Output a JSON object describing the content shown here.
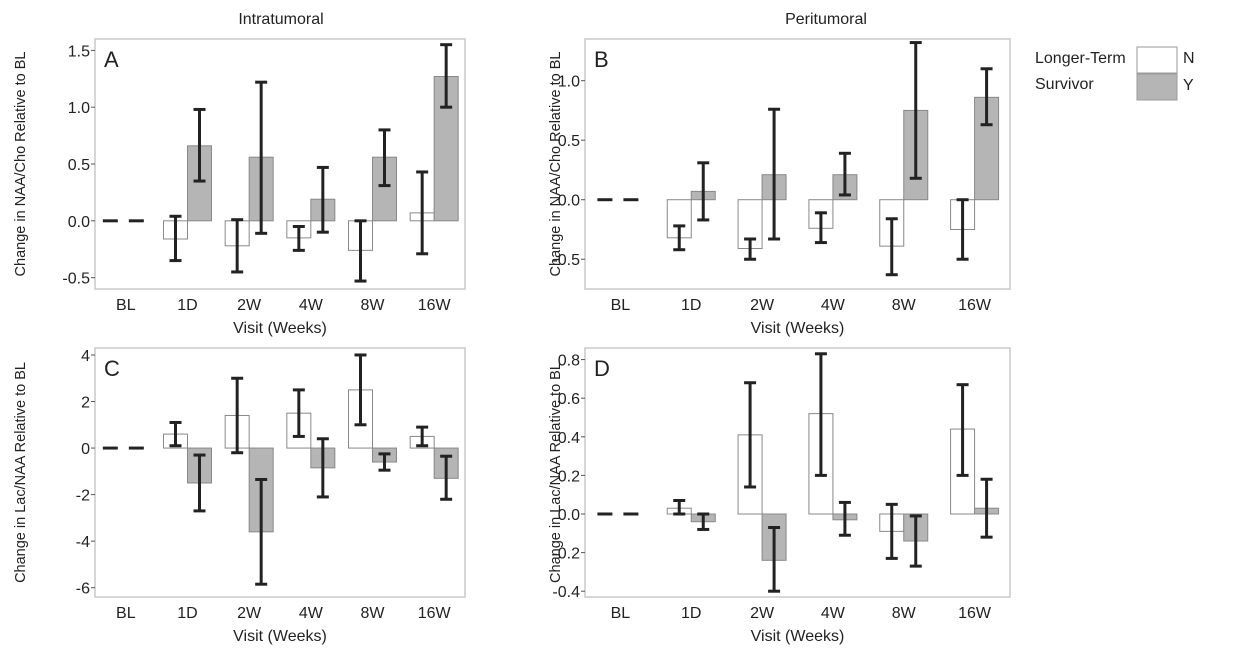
{
  "col_titles": [
    "Intratumoral",
    "Peritumoral"
  ],
  "legend": {
    "title": [
      "Longer-Term",
      "Survivor"
    ],
    "entries": [
      "N",
      "Y"
    ]
  },
  "colors": {
    "N": "#ffffff",
    "Y": "#b5b5b5",
    "frame": "#c8c8c8",
    "bar_edge": "#888888",
    "error": "#222222"
  },
  "chart_data": [
    {
      "type": "bar",
      "panel": "A",
      "categories": [
        "BL",
        "1D",
        "2W",
        "4W",
        "8W",
        "16W"
      ],
      "xlabel": "Visit (Weeks)",
      "ylabel": "Change in NAA/Cho Relative to BL",
      "ylim": [
        -0.6,
        1.6
      ],
      "yticks": [
        "1.5",
        "1.0",
        "0.5",
        "0.0",
        "-0.5"
      ],
      "series": [
        {
          "name": "N",
          "values": [
            0,
            -0.16,
            -0.22,
            -0.15,
            -0.26,
            0.07
          ],
          "err_low": [
            0,
            -0.35,
            -0.45,
            -0.26,
            -0.53,
            -0.29
          ],
          "err_high": [
            0,
            0.04,
            0.01,
            -0.05,
            0.0,
            0.43
          ]
        },
        {
          "name": "Y",
          "values": [
            0,
            0.66,
            0.56,
            0.19,
            0.56,
            1.27
          ],
          "err_low": [
            0,
            0.35,
            -0.11,
            -0.1,
            0.31,
            1.0
          ],
          "err_high": [
            0,
            0.98,
            1.22,
            0.47,
            0.8,
            1.55
          ]
        }
      ]
    },
    {
      "type": "bar",
      "panel": "B",
      "categories": [
        "BL",
        "1D",
        "2W",
        "4W",
        "8W",
        "16W"
      ],
      "xlabel": "Visit (Weeks)",
      "ylabel": "Change in NAA/Cho Relative to BL",
      "ylim": [
        -0.75,
        1.35
      ],
      "yticks": [
        "1.0",
        "0.5",
        "0.0",
        "-0.5"
      ],
      "series": [
        {
          "name": "N",
          "values": [
            0,
            -0.32,
            -0.41,
            -0.24,
            -0.39,
            -0.25
          ],
          "err_low": [
            0,
            -0.42,
            -0.5,
            -0.36,
            -0.63,
            -0.5
          ],
          "err_high": [
            0,
            -0.22,
            -0.33,
            -0.11,
            -0.16,
            0.0
          ]
        },
        {
          "name": "Y",
          "values": [
            0,
            0.07,
            0.21,
            0.21,
            0.75,
            0.86
          ],
          "err_low": [
            0,
            -0.17,
            -0.33,
            0.04,
            0.18,
            0.63
          ],
          "err_high": [
            0,
            0.31,
            0.76,
            0.39,
            1.32,
            1.1
          ]
        }
      ]
    },
    {
      "type": "bar",
      "panel": "C",
      "categories": [
        "BL",
        "1D",
        "2W",
        "4W",
        "8W",
        "16W"
      ],
      "xlabel": "Visit (Weeks)",
      "ylabel": "Change in Lac/NAA Relative to BL",
      "ylim": [
        -6.4,
        4.3
      ],
      "yticks": [
        "4",
        "2",
        "0",
        "-2",
        "-4",
        "-6"
      ],
      "series": [
        {
          "name": "N",
          "values": [
            0,
            0.6,
            1.4,
            1.5,
            2.5,
            0.5
          ],
          "err_low": [
            0,
            0.1,
            -0.2,
            0.5,
            1.0,
            0.1
          ],
          "err_high": [
            0,
            1.1,
            3.0,
            2.5,
            4.0,
            0.9
          ]
        },
        {
          "name": "Y",
          "values": [
            0,
            -1.5,
            -3.6,
            -0.85,
            -0.6,
            -1.3
          ],
          "err_low": [
            0,
            -2.7,
            -5.85,
            -2.1,
            -0.95,
            -2.2
          ],
          "err_high": [
            0,
            -0.3,
            -1.35,
            0.4,
            -0.25,
            -0.35
          ]
        }
      ]
    },
    {
      "type": "bar",
      "panel": "D",
      "categories": [
        "BL",
        "1D",
        "2W",
        "4W",
        "8W",
        "16W"
      ],
      "xlabel": "Visit (Weeks)",
      "ylabel": "Change in Lac/NAA Relative to BL",
      "ylim": [
        -0.43,
        0.86
      ],
      "yticks": [
        "0.8",
        "0.6",
        "0.4",
        "0.2",
        "0.0",
        "-0.2",
        "-0.4"
      ],
      "series": [
        {
          "name": "N",
          "values": [
            0,
            0.03,
            0.41,
            0.52,
            -0.09,
            0.44
          ],
          "err_low": [
            0,
            0.0,
            0.14,
            0.2,
            -0.23,
            0.2
          ],
          "err_high": [
            0,
            0.07,
            0.68,
            0.83,
            0.05,
            0.67
          ]
        },
        {
          "name": "Y",
          "values": [
            0,
            -0.04,
            -0.24,
            -0.03,
            -0.14,
            0.03
          ],
          "err_low": [
            0,
            -0.08,
            -0.4,
            -0.11,
            -0.27,
            -0.12
          ],
          "err_high": [
            0,
            0.0,
            -0.07,
            0.06,
            -0.01,
            0.18
          ]
        }
      ]
    }
  ]
}
